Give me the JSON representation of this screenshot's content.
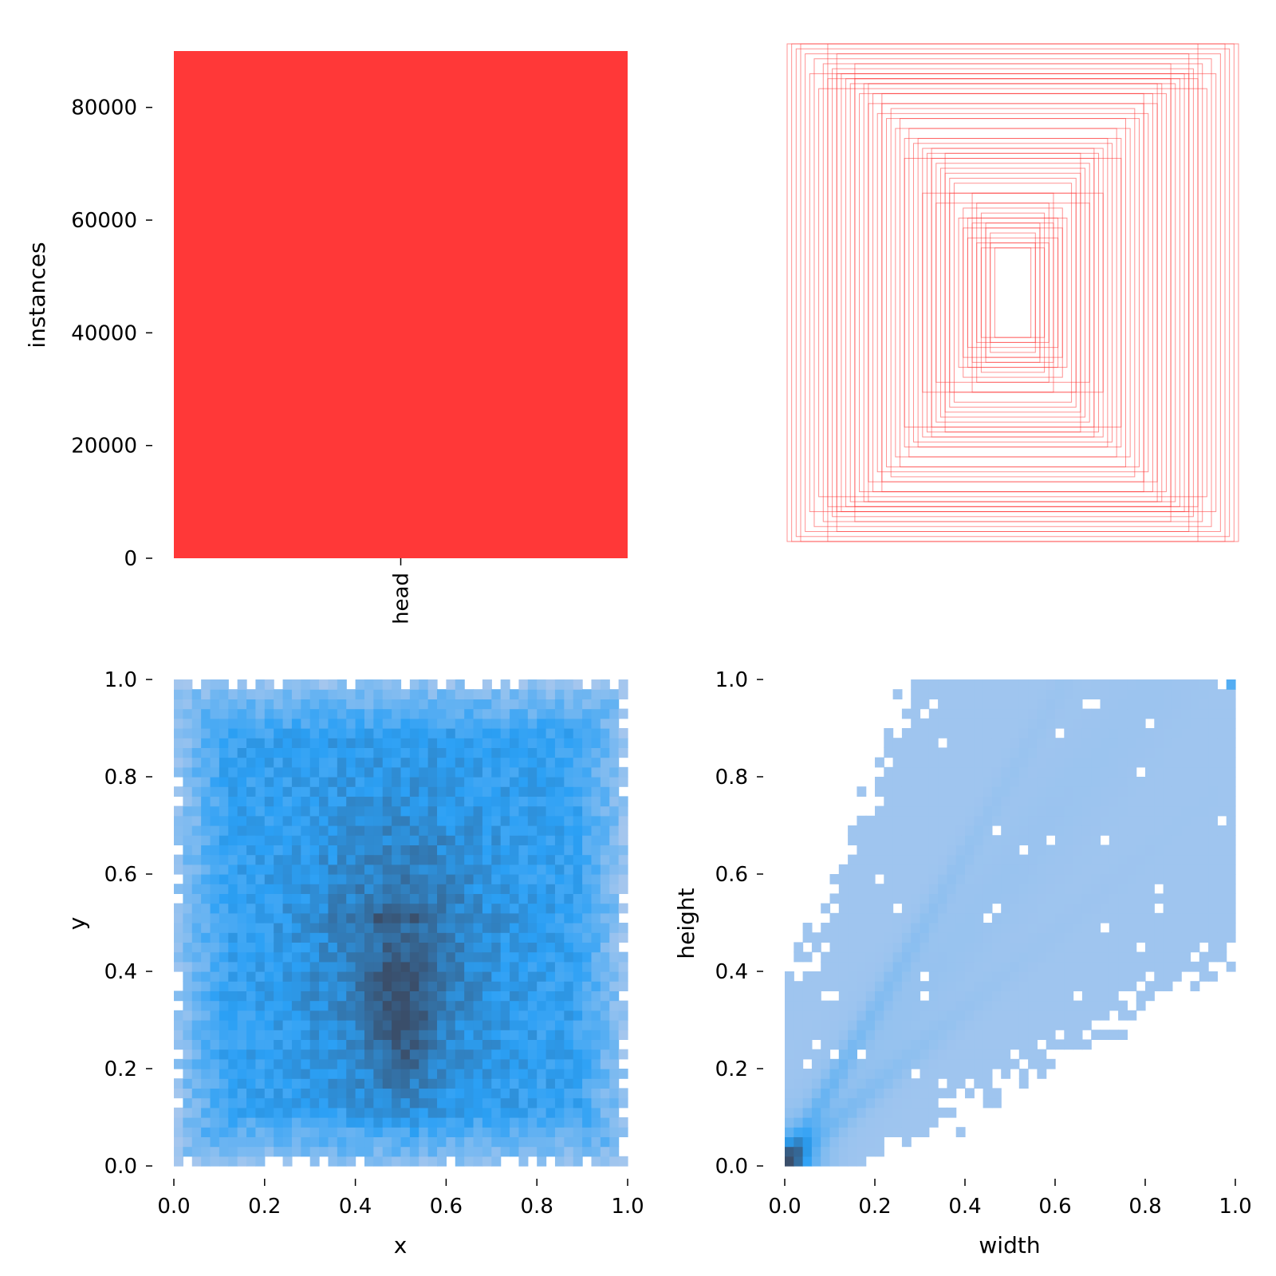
{
  "chart_data": [
    {
      "type": "bar",
      "panel": "top-left",
      "categories": [
        "head"
      ],
      "values": [
        90000
      ],
      "ylabel": "instances",
      "ylim": [
        0,
        90000
      ],
      "yticks": [
        0,
        20000,
        40000,
        60000,
        80000
      ],
      "ytick_labels": [
        "0",
        "20000",
        "40000",
        "60000",
        "80000"
      ],
      "color": "#ff3838",
      "grid": false
    },
    {
      "type": "scatter",
      "panel": "top-right",
      "description_color": "#ff3838",
      "boxes_wh": [
        [
          0.1,
          0.24
        ],
        [
          0.12,
          0.28
        ],
        [
          0.14,
          0.32
        ],
        [
          0.16,
          0.36
        ],
        [
          0.18,
          0.4
        ],
        [
          0.2,
          0.3
        ],
        [
          0.22,
          0.34
        ],
        [
          0.24,
          0.3
        ],
        [
          0.26,
          0.44
        ],
        [
          0.28,
          0.46
        ],
        [
          0.3,
          0.48
        ],
        [
          0.32,
          0.5
        ],
        [
          0.34,
          0.52
        ],
        [
          0.36,
          0.54
        ],
        [
          0.38,
          0.56
        ],
        [
          0.4,
          0.58
        ],
        [
          0.44,
          0.6
        ],
        [
          0.48,
          0.62
        ],
        [
          0.52,
          0.66
        ],
        [
          0.56,
          0.7
        ],
        [
          0.6,
          0.72
        ],
        [
          0.64,
          0.76
        ],
        [
          0.68,
          0.8
        ],
        [
          0.72,
          0.84
        ],
        [
          0.74,
          0.86
        ],
        [
          0.78,
          0.88
        ],
        [
          0.8,
          0.9
        ],
        [
          0.84,
          0.92
        ],
        [
          0.88,
          0.94
        ],
        [
          0.92,
          0.96
        ],
        [
          0.96,
          0.98
        ],
        [
          1.0,
          1.0
        ],
        [
          0.66,
          0.84
        ],
        [
          0.62,
          0.8
        ],
        [
          0.58,
          0.76
        ],
        [
          0.5,
          0.7
        ],
        [
          0.46,
          0.66
        ],
        [
          0.42,
          0.62
        ],
        [
          0.36,
          0.58
        ],
        [
          0.3,
          0.56
        ],
        [
          0.7,
          0.86
        ],
        [
          0.76,
          0.88
        ],
        [
          0.82,
          0.86
        ],
        [
          0.86,
          0.82
        ],
        [
          0.9,
          0.88
        ],
        [
          0.54,
          0.74
        ],
        [
          0.48,
          0.54
        ],
        [
          0.4,
          0.4
        ],
        [
          0.34,
          0.36
        ],
        [
          0.28,
          0.4
        ],
        [
          0.2,
          0.22
        ],
        [
          0.18,
          0.28
        ],
        [
          0.22,
          0.26
        ],
        [
          0.16,
          0.2
        ],
        [
          0.14,
          0.18
        ],
        [
          0.12,
          0.26
        ],
        [
          0.1,
          0.2
        ],
        [
          0.08,
          0.18
        ],
        [
          0.78,
          0.96
        ],
        [
          0.82,
          1.0
        ],
        [
          0.64,
          0.84
        ],
        [
          0.58,
          0.8
        ],
        [
          0.94,
          1.0
        ],
        [
          0.98,
          1.0
        ],
        [
          0.7,
          0.92
        ]
      ],
      "grid": false
    },
    {
      "type": "heatmap",
      "panel": "bottom-left",
      "xlabel": "x",
      "ylabel": "y",
      "xlim": [
        0.0,
        1.0
      ],
      "ylim": [
        0.0,
        1.0
      ],
      "xticks": [
        0.0,
        0.2,
        0.4,
        0.6,
        0.8,
        1.0
      ],
      "xtick_labels": [
        "0.0",
        "0.2",
        "0.4",
        "0.6",
        "0.8",
        "1.0"
      ],
      "yticks": [
        0.0,
        0.2,
        0.4,
        0.6,
        0.8,
        1.0
      ],
      "ytick_labels": [
        "0.0",
        "0.2",
        "0.4",
        "0.6",
        "0.8",
        "1.0"
      ],
      "bins": 50,
      "colors": {
        "low": "#a9c8ee",
        "mid": "#2ba0f5",
        "high": "#3a4e6a"
      },
      "density_shape": "dense column at x≈0.5 for y 0.15–0.45, horizontal band at y≈0.51, falling off toward edges",
      "grid": false
    },
    {
      "type": "heatmap",
      "panel": "bottom-right",
      "xlabel": "width",
      "ylabel": "height",
      "xlim": [
        0.0,
        1.0
      ],
      "ylim": [
        0.0,
        1.0
      ],
      "xticks": [
        0.0,
        0.2,
        0.4,
        0.6,
        0.8,
        1.0
      ],
      "xtick_labels": [
        "0.0",
        "0.2",
        "0.4",
        "0.6",
        "0.8",
        "1.0"
      ],
      "yticks": [
        0.0,
        0.2,
        0.4,
        0.6,
        0.8,
        1.0
      ],
      "ytick_labels": [
        "0.0",
        "0.2",
        "0.4",
        "0.6",
        "0.8",
        "1.0"
      ],
      "bins": 50,
      "colors": {
        "low": "#a9c8ee",
        "mid": "#2ba0f5",
        "high": "#3a4e6a"
      },
      "density_shape": "dense ridges along height≈1.6·width and height≈0.8·width near origin, broad light fill above lower diagonal",
      "grid": false
    }
  ]
}
